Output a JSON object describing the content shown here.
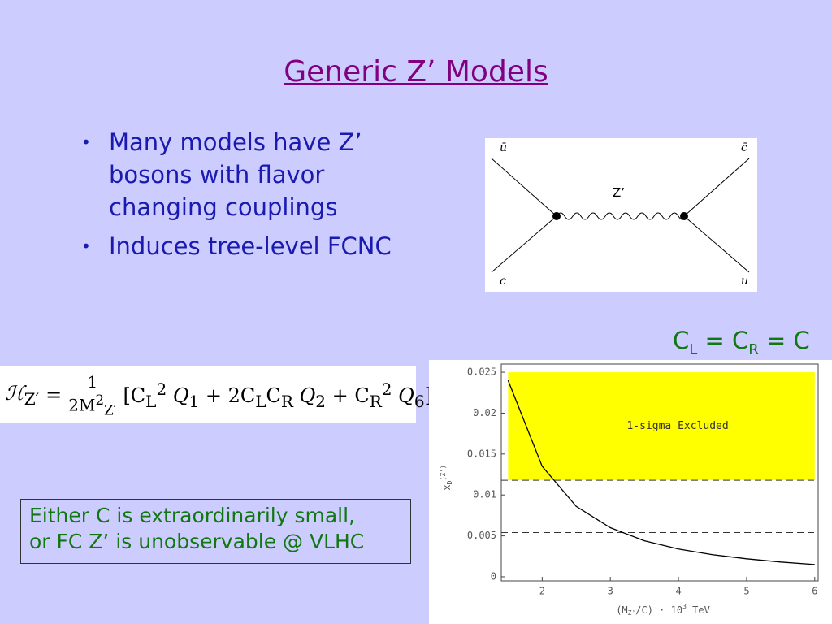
{
  "title": "Generic Z’ Models",
  "bullets": [
    "Many models have Z’ bosons with flavor changing couplings",
    "Induces tree-level FCNC"
  ],
  "diagram": {
    "top_left": "ū",
    "top_right": "c̄",
    "bottom_left": "c",
    "bottom_right": "u",
    "boson": "Z’"
  },
  "formula": {
    "lhs": "ℋ",
    "lhs_sub": "Z′",
    "eq": "=",
    "num": "1",
    "den": "2M",
    "den_sup": "2",
    "den_sub": "Z′",
    "body": [
      "[C",
      "L",
      "2",
      " Q",
      "1",
      " + 2C",
      "L",
      "C",
      "R",
      " Q",
      "2",
      " + C",
      "R",
      "2",
      " Q",
      "6",
      "]"
    ]
  },
  "coupling": [
    "C",
    "L",
    " = C",
    "R",
    " = C"
  ],
  "conclusion": [
    "Either C is extraordinarily small,",
    "or FC Z’ is unobservable @ VLHC"
  ],
  "chart_data": {
    "type": "line",
    "xlabel": [
      "(M",
      "Z'",
      "/C) · 10",
      "3",
      " TeV"
    ],
    "ylabel": [
      "x",
      "D",
      "(Z')"
    ],
    "x": [
      1.5,
      2,
      2.5,
      3,
      3.5,
      4,
      4.5,
      5,
      5.5,
      6
    ],
    "series": [
      {
        "color": "#000000",
        "values": [
          0.024,
          0.0135,
          0.0086,
          0.006,
          0.0044,
          0.0034,
          0.0027,
          0.0022,
          0.0018,
          0.0015
        ]
      }
    ],
    "region": {
      "x": [
        1.5,
        6
      ],
      "y": [
        0.0118,
        0.025
      ],
      "color": "#ffff00",
      "label": "1-sigma Excluded"
    },
    "hlines": [
      0.0118,
      0.0054
    ],
    "xlim": [
      1.4,
      6.05
    ],
    "ylim": [
      -0.0005,
      0.026
    ],
    "xticks": [
      2,
      3,
      4,
      5,
      6
    ],
    "yticks": [
      0,
      0.005,
      0.01,
      0.015,
      0.02,
      0.025
    ]
  }
}
